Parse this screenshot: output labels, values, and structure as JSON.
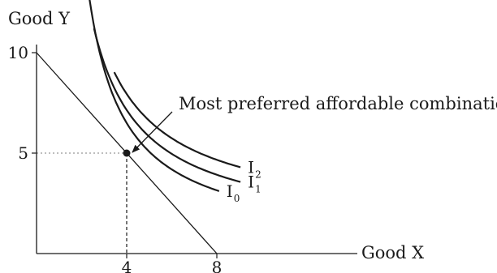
{
  "chart_data": {
    "type": "line",
    "ylabel": "Good Y",
    "xlabel": "Good X",
    "xlim": [
      0,
      17
    ],
    "ylim": [
      0,
      10.8
    ],
    "y_ticks": [
      {
        "value": 10,
        "label": "10"
      },
      {
        "value": 5,
        "label": "5"
      }
    ],
    "x_ticks": [
      {
        "value": 4,
        "label": "4"
      },
      {
        "value": 8,
        "label": "8"
      }
    ],
    "budget_line": {
      "x": [
        0,
        8
      ],
      "y": [
        10,
        0
      ]
    },
    "optimum": {
      "x": 4,
      "y": 5
    },
    "annotation": "Most preferred affordable combination",
    "series": [
      {
        "name": "I0",
        "label": "I",
        "sub": "0",
        "k": 20,
        "x0": 0.72,
        "y0": 0.4,
        "xs": [
          1.7,
          8.1
        ]
      },
      {
        "name": "I1",
        "label": "I",
        "sub": "1",
        "k": 22.5,
        "x0": 0.35,
        "y0": 0.98,
        "xs": [
          2.55,
          9.05
        ]
      },
      {
        "name": "I2",
        "label": "I",
        "sub": "2",
        "k": 24.3,
        "x0": 0.2,
        "y0": 1.55,
        "xs": [
          3.45,
          9.05
        ]
      }
    ]
  }
}
